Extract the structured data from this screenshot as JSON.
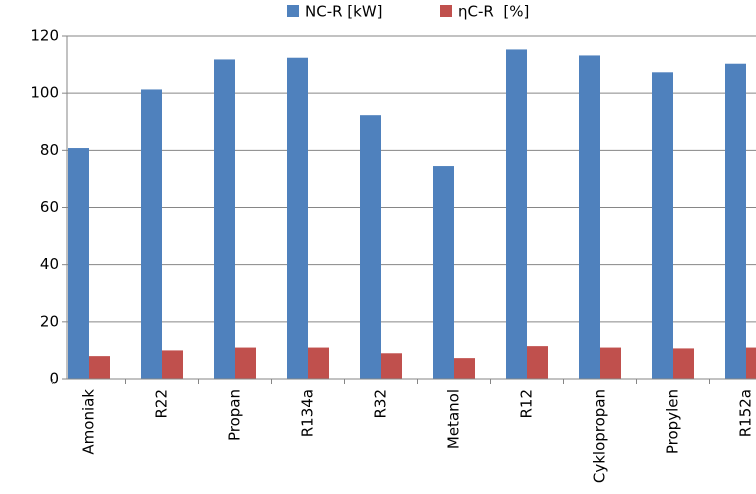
{
  "chart_data": {
    "type": "bar",
    "categories": [
      "Amoniak",
      "R22",
      "Propan",
      "R134a",
      "R32",
      "Metanol",
      "R12",
      "Cyklopropan",
      "Propylen",
      "R152a"
    ],
    "series": [
      {
        "name": "NC-R [kW]",
        "color": "#4f81bd",
        "values": [
          80.8,
          101.3,
          111.8,
          112.4,
          92.3,
          74.5,
          115.3,
          113.2,
          107.3,
          110.3
        ]
      },
      {
        "name": "ηC-R  [%]",
        "color": "#c0504d",
        "values": [
          8,
          10,
          11,
          11,
          9,
          7.3,
          11.5,
          11,
          10.7,
          11
        ]
      }
    ],
    "ylim": [
      0,
      120
    ],
    "yticks": [
      0,
      20,
      40,
      60,
      80,
      100,
      120
    ],
    "grid": true,
    "legend": "top"
  }
}
